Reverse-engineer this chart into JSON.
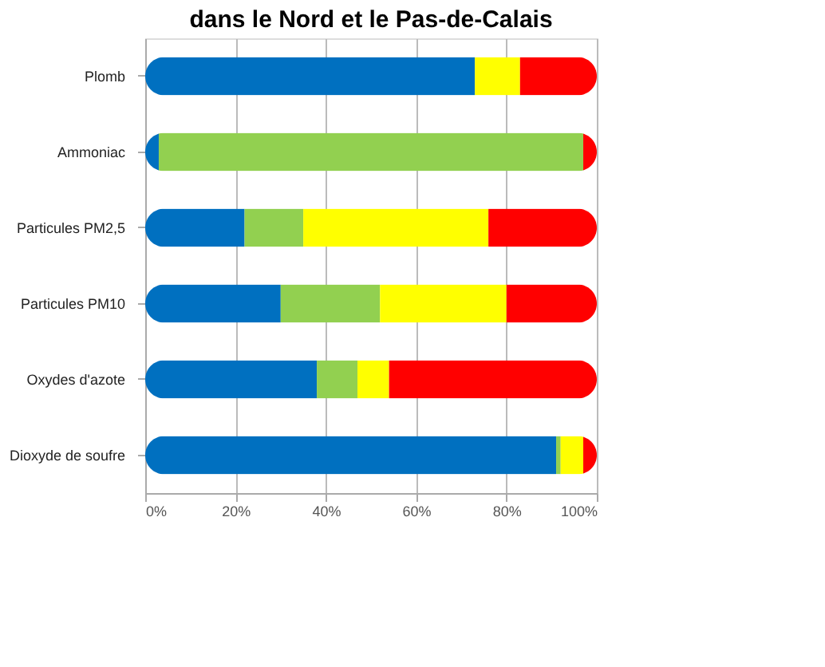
{
  "chart_data": {
    "type": "bar",
    "orientation": "horizontal",
    "stacked": true,
    "title": "dans le Nord et le Pas-de-Calais",
    "categories": [
      "Plomb",
      "Ammoniac",
      "Particules PM2,5",
      "Particules PM10",
      "Oxydes d'azote",
      "Dioxyde de soufre"
    ],
    "series": [
      {
        "color": "#0070c0",
        "values": [
          73,
          3,
          22,
          30,
          38,
          91
        ]
      },
      {
        "color": "#92d050",
        "values": [
          0,
          94,
          13,
          22,
          9,
          1
        ]
      },
      {
        "color": "#ffff00",
        "values": [
          10,
          0,
          41,
          28,
          7,
          5
        ]
      },
      {
        "color": "#ff0000",
        "values": [
          17,
          3,
          24,
          20,
          46,
          3
        ]
      }
    ],
    "xlim": [
      0,
      100
    ],
    "xticks": [
      {
        "value": 0,
        "label": "0%"
      },
      {
        "value": 20,
        "label": "20%"
      },
      {
        "value": 40,
        "label": "40%"
      },
      {
        "value": 60,
        "label": "60%"
      },
      {
        "value": 80,
        "label": "80%"
      },
      {
        "value": 100,
        "label": "100%"
      }
    ],
    "grid": "x",
    "legend": false
  }
}
